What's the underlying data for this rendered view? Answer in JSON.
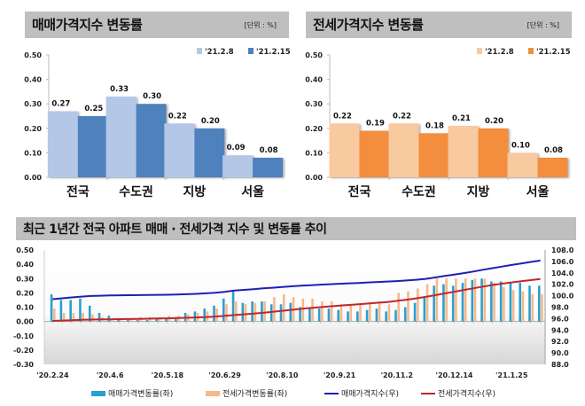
{
  "chart_data": [
    {
      "type": "bar",
      "title": "매매가격지수 변동률",
      "unit_label": "[단위 : %]",
      "categories": [
        "전국",
        "수도권",
        "지방",
        "서울"
      ],
      "series": [
        {
          "name": "'21.2.8",
          "color": "#b4c7e7",
          "values": [
            0.27,
            0.33,
            0.22,
            0.09
          ]
        },
        {
          "name": "'21.2.15",
          "color": "#4f81bd",
          "values": [
            0.25,
            0.3,
            0.2,
            0.08
          ]
        }
      ],
      "yticks": [
        "0.50",
        "0.40",
        "0.30",
        "0.20",
        "0.10",
        "0.00"
      ],
      "ylim": [
        0,
        0.5
      ],
      "legend": "top-right"
    },
    {
      "type": "bar",
      "title": "전세가격지수 변동률",
      "unit_label": "[단위 : %]",
      "categories": [
        "전국",
        "수도권",
        "지방",
        "서울"
      ],
      "series": [
        {
          "name": "'21.2.8",
          "color": "#f9c9a0",
          "values": [
            0.22,
            0.22,
            0.21,
            0.1
          ]
        },
        {
          "name": "'21.2.15",
          "color": "#f28e3c",
          "values": [
            0.19,
            0.18,
            0.2,
            0.08
          ]
        }
      ],
      "yticks": [
        "0.50",
        "0.40",
        "0.30",
        "0.20",
        "0.10",
        "0.00"
      ],
      "ylim": [
        0,
        0.5
      ],
      "legend": "top-right"
    },
    {
      "type": "bar+line",
      "title": "최근 1년간 전국 아파트 매매 · 전세가격 지수 및 변동률 추이",
      "xtick_labels": [
        "'20.2.24",
        "'20.4.6",
        "'20.5.18",
        "'20.6.29",
        "'20.8.10",
        "'20.9.21",
        "'20.11.2",
        "'20.12.14",
        "'21.1.25"
      ],
      "xtick_every": 6,
      "left_axis": {
        "ticks": [
          "0.50",
          "0.40",
          "0.30",
          "0.20",
          "0.10",
          "0.00",
          "-0.10",
          "-0.20",
          "-0.30"
        ],
        "ylim": [
          -0.3,
          0.5
        ]
      },
      "right_axis": {
        "ticks": [
          "108.0",
          "106.0",
          "104.0",
          "102.0",
          "100.0",
          "98.0",
          "96.0",
          "94.0",
          "92.0",
          "90.0",
          "88.0"
        ],
        "ylim": [
          88,
          108
        ]
      },
      "series": [
        {
          "name": "매매가격변동률(좌)",
          "kind": "bar",
          "axis": "left",
          "color": "#2b9fd0",
          "values": [
            0.19,
            0.15,
            0.15,
            0.16,
            0.11,
            0.06,
            0.04,
            0.01,
            0.01,
            0.01,
            0.01,
            0.02,
            0.02,
            0.03,
            0.06,
            0.07,
            0.09,
            0.11,
            0.16,
            0.21,
            0.13,
            0.14,
            0.14,
            0.12,
            0.12,
            0.13,
            0.1,
            0.1,
            0.09,
            0.09,
            0.08,
            0.07,
            0.07,
            0.08,
            0.09,
            0.07,
            0.08,
            0.1,
            0.13,
            0.17,
            0.25,
            0.26,
            0.25,
            0.27,
            0.29,
            0.3,
            0.28,
            0.28,
            0.27,
            0.27,
            0.25,
            0.25
          ]
        },
        {
          "name": "전세가격변동률(좌)",
          "kind": "bar",
          "axis": "left",
          "color": "#f6b98a",
          "values": [
            0.09,
            0.06,
            0.06,
            0.06,
            0.05,
            0.03,
            0.02,
            0.02,
            0.02,
            0.03,
            0.03,
            0.03,
            0.04,
            0.04,
            0.05,
            0.06,
            0.07,
            0.09,
            0.12,
            0.14,
            0.12,
            0.13,
            0.14,
            0.17,
            0.19,
            0.17,
            0.16,
            0.16,
            0.14,
            0.14,
            0.12,
            0.12,
            0.13,
            0.13,
            0.14,
            0.12,
            0.2,
            0.21,
            0.23,
            0.26,
            0.3,
            0.3,
            0.3,
            0.3,
            0.3,
            0.3,
            0.27,
            0.24,
            0.22,
            0.21,
            0.19,
            0.19
          ]
        },
        {
          "name": "매매가격지수(우)",
          "kind": "line",
          "axis": "right",
          "color": "#1f1fb4",
          "values": [
            99.4,
            99.55,
            99.7,
            99.85,
            99.95,
            100.0,
            100.05,
            100.07,
            100.09,
            100.11,
            100.13,
            100.15,
            100.17,
            100.2,
            100.26,
            100.33,
            100.42,
            100.53,
            100.68,
            100.9,
            101.02,
            101.15,
            101.28,
            101.4,
            101.52,
            101.65,
            101.75,
            101.85,
            101.94,
            102.02,
            102.1,
            102.17,
            102.24,
            102.32,
            102.41,
            102.48,
            102.56,
            102.66,
            102.79,
            102.95,
            103.2,
            103.45,
            103.7,
            103.96,
            104.24,
            104.54,
            104.82,
            105.1,
            105.38,
            105.65,
            105.9,
            106.15
          ]
        },
        {
          "name": "전세가격지수(우)",
          "kind": "line",
          "axis": "right",
          "color": "#c0262d",
          "values": [
            95.6,
            95.66,
            95.72,
            95.78,
            95.83,
            95.86,
            95.88,
            95.9,
            95.92,
            95.95,
            95.98,
            96.01,
            96.05,
            96.09,
            96.14,
            96.2,
            96.27,
            96.36,
            96.48,
            96.62,
            96.74,
            96.87,
            97.01,
            97.18,
            97.37,
            97.54,
            97.7,
            97.86,
            98.0,
            98.14,
            98.26,
            98.38,
            98.51,
            98.64,
            98.78,
            98.9,
            99.1,
            99.31,
            99.54,
            99.8,
            100.1,
            100.4,
            100.7,
            101.0,
            101.3,
            101.6,
            101.87,
            102.11,
            102.33,
            102.54,
            102.73,
            102.92
          ]
        }
      ],
      "legend": "bottom"
    }
  ]
}
